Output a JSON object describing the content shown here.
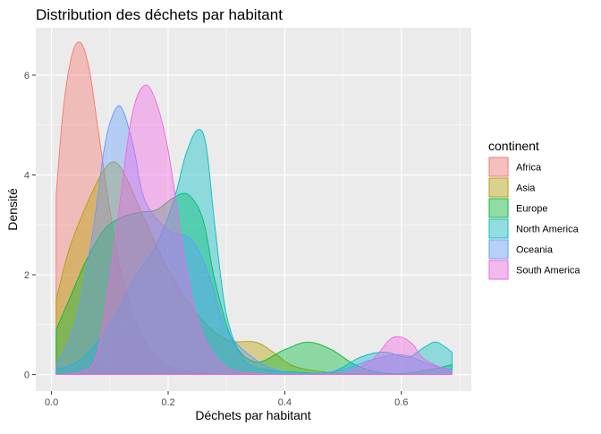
{
  "chart_data": {
    "type": "area",
    "subtype": "density",
    "title": "Distribution des déchets par habitant",
    "xlabel": "Déchets par habitant",
    "ylabel": "Densité",
    "xlim": [
      -0.027,
      0.72
    ],
    "ylim": [
      -0.33,
      6.95
    ],
    "x_ticks": [
      0.0,
      0.2,
      0.4,
      0.6
    ],
    "x_tick_labels": [
      "0.0",
      "0.2",
      "0.4",
      "0.6"
    ],
    "y_ticks": [
      0,
      2,
      4,
      6
    ],
    "y_tick_labels": [
      "0",
      "2",
      "4",
      "6"
    ],
    "grid": true,
    "background": "#EBEBEB",
    "fill_opacity": 0.4,
    "legend": {
      "title": "continent",
      "position": "right"
    },
    "series": [
      {
        "name": "Africa",
        "color": "#F8766D",
        "x": [
          0.008,
          0.02,
          0.035,
          0.05,
          0.065,
          0.08,
          0.1,
          0.12,
          0.15,
          0.18,
          0.22,
          0.26,
          0.3
        ],
        "y": [
          3.6,
          5.3,
          6.4,
          6.65,
          6.1,
          4.9,
          3.3,
          2.0,
          0.9,
          0.35,
          0.1,
          0.03,
          0.0
        ]
      },
      {
        "name": "Asia",
        "color": "#B79F00",
        "x": [
          0.008,
          0.03,
          0.06,
          0.09,
          0.11,
          0.13,
          0.16,
          0.2,
          0.25,
          0.3,
          0.35,
          0.38,
          0.42,
          0.5,
          0.6,
          0.687
        ],
        "y": [
          1.5,
          2.5,
          3.4,
          4.1,
          4.25,
          3.9,
          3.1,
          2.1,
          1.2,
          0.7,
          0.65,
          0.45,
          0.15,
          0.02,
          0.0,
          0.0
        ]
      },
      {
        "name": "Europe",
        "color": "#00BA38",
        "x": [
          0.008,
          0.03,
          0.06,
          0.09,
          0.12,
          0.15,
          0.18,
          0.21,
          0.235,
          0.26,
          0.28,
          0.31,
          0.35,
          0.4,
          0.44,
          0.48,
          0.52,
          0.56,
          0.6,
          0.65,
          0.687
        ],
        "y": [
          0.9,
          1.5,
          2.3,
          2.9,
          3.15,
          3.25,
          3.3,
          3.55,
          3.6,
          3.1,
          1.9,
          0.7,
          0.25,
          0.5,
          0.65,
          0.5,
          0.2,
          0.05,
          0.02,
          0.1,
          0.2
        ]
      },
      {
        "name": "North America",
        "color": "#00BFC4",
        "x": [
          0.008,
          0.05,
          0.1,
          0.14,
          0.18,
          0.21,
          0.23,
          0.25,
          0.265,
          0.28,
          0.3,
          0.33,
          0.37,
          0.42,
          0.48,
          0.53,
          0.57,
          0.61,
          0.64,
          0.66,
          0.687
        ],
        "y": [
          0.1,
          0.3,
          1.0,
          1.9,
          2.6,
          3.5,
          4.4,
          4.9,
          4.6,
          3.0,
          1.2,
          0.3,
          0.1,
          0.05,
          0.05,
          0.35,
          0.45,
          0.35,
          0.55,
          0.65,
          0.45
        ]
      },
      {
        "name": "Oceania",
        "color": "#619CFF",
        "x": [
          0.008,
          0.04,
          0.07,
          0.09,
          0.105,
          0.12,
          0.14,
          0.16,
          0.2,
          0.24,
          0.27,
          0.3,
          0.35,
          0.4,
          0.45,
          0.5,
          0.55,
          0.6,
          0.65,
          0.687
        ],
        "y": [
          0.2,
          1.0,
          2.8,
          4.5,
          5.2,
          5.35,
          4.6,
          3.5,
          2.9,
          2.7,
          2.0,
          0.9,
          0.3,
          0.05,
          0.02,
          0.1,
          0.3,
          0.4,
          0.2,
          0.1
        ]
      },
      {
        "name": "South America",
        "color": "#F564E3",
        "x": [
          0.008,
          0.05,
          0.08,
          0.11,
          0.135,
          0.155,
          0.175,
          0.2,
          0.23,
          0.26,
          0.3,
          0.35,
          0.4,
          0.45,
          0.5,
          0.55,
          0.58,
          0.6,
          0.62,
          0.64,
          0.687
        ],
        "y": [
          0.0,
          0.05,
          0.5,
          2.8,
          5.0,
          5.75,
          5.6,
          4.5,
          2.2,
          0.8,
          0.15,
          0.02,
          0.0,
          0.0,
          0.02,
          0.3,
          0.7,
          0.75,
          0.6,
          0.3,
          0.05
        ]
      }
    ]
  }
}
